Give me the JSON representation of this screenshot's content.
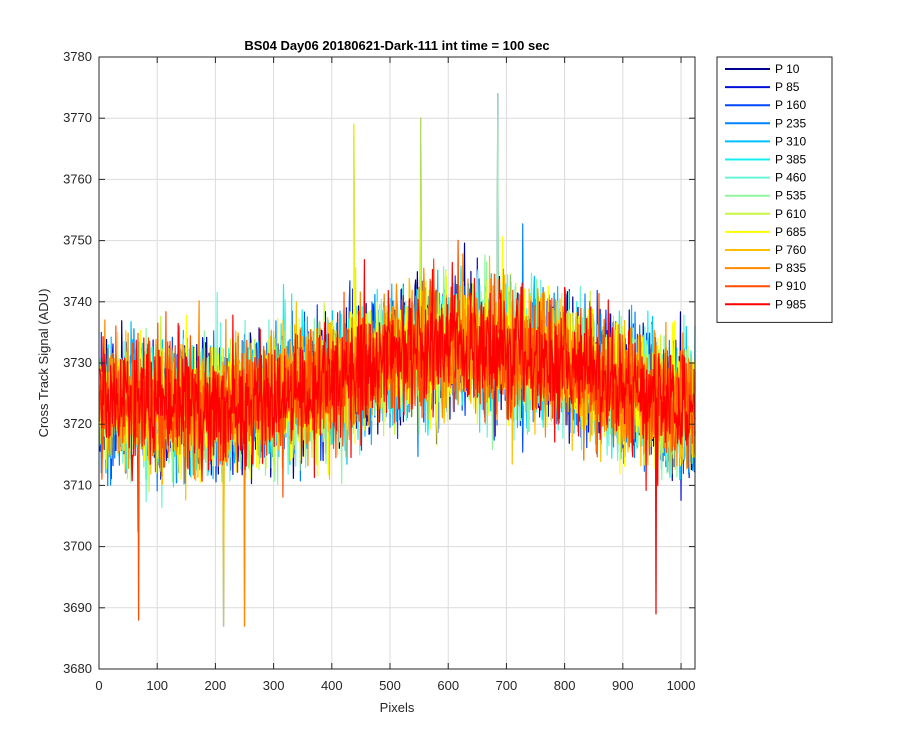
{
  "chart_data": {
    "type": "line",
    "title": "BS04 Day06 20180621-Dark-111 int time = 100 sec",
    "xlabel": "Pixels",
    "ylabel": "Cross Track Signal (ADU)",
    "xlim": [
      0,
      1024
    ],
    "ylim": [
      3680,
      3780
    ],
    "xticks": [
      0,
      100,
      200,
      300,
      400,
      500,
      600,
      700,
      800,
      900,
      1000
    ],
    "yticks": [
      3680,
      3690,
      3700,
      3710,
      3720,
      3730,
      3740,
      3750,
      3760,
      3770,
      3780
    ],
    "grid": true,
    "legend_position": "outside-right",
    "n_points": 1024,
    "baseline_profile": {
      "x": [
        0,
        100,
        200,
        300,
        400,
        500,
        600,
        700,
        800,
        900,
        1024
      ],
      "y": [
        3724,
        3723,
        3722,
        3724,
        3727,
        3731,
        3733,
        3732,
        3730,
        3726,
        3722
      ]
    },
    "noise_band_adu": 13,
    "peak_values": [
      {
        "x": 685,
        "y": 3774
      },
      {
        "x": 553,
        "y": 3770
      },
      {
        "x": 438,
        "y": 3769
      },
      {
        "x": 214,
        "y": 3687
      },
      {
        "x": 250,
        "y": 3687
      },
      {
        "x": 68,
        "y": 3688
      },
      {
        "x": 957,
        "y": 3689
      }
    ],
    "series": [
      {
        "name": "P 10",
        "color": "#00008f"
      },
      {
        "name": "P 85",
        "color": "#0010d9"
      },
      {
        "name": "P 160",
        "color": "#0047ff"
      },
      {
        "name": "P 235",
        "color": "#0084ff"
      },
      {
        "name": "P 310",
        "color": "#00bfff"
      },
      {
        "name": "P 385",
        "color": "#14f0f0"
      },
      {
        "name": "P 460",
        "color": "#66f5d6"
      },
      {
        "name": "P 535",
        "color": "#8ff59e"
      },
      {
        "name": "P 610",
        "color": "#c8f53d"
      },
      {
        "name": "P 685",
        "color": "#ffff00"
      },
      {
        "name": "P 760",
        "color": "#ffbf00"
      },
      {
        "name": "P 835",
        "color": "#ff8a00"
      },
      {
        "name": "P 910",
        "color": "#ff4d00"
      },
      {
        "name": "P 985",
        "color": "#ff0000"
      }
    ]
  }
}
